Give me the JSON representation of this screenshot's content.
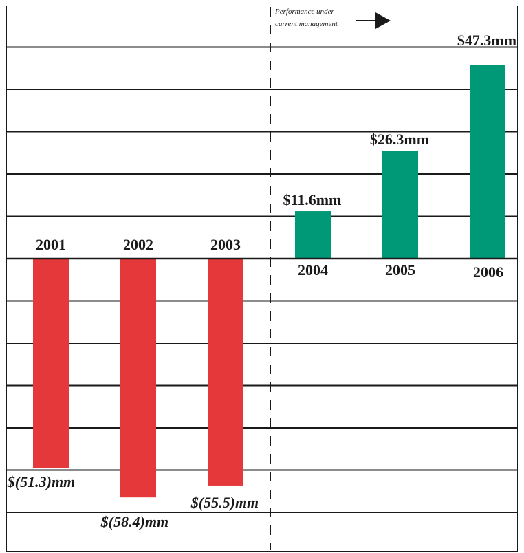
{
  "chart_data": {
    "type": "bar",
    "categories": [
      "2001",
      "2002",
      "2003",
      "2004",
      "2005",
      "2006"
    ],
    "values": [
      -51.3,
      -58.4,
      -55.5,
      11.6,
      26.3,
      47.3
    ],
    "value_labels": [
      "$(51.3)mm",
      "$(58.4)mm",
      "$(55.5)mm",
      "$11.6mm",
      "$26.3mm",
      "$47.3mm"
    ],
    "colors": {
      "negative": "#e5383b",
      "positive": "#009977",
      "gridline": "#1a1a1a"
    },
    "grid": true,
    "annotation": {
      "line1": "Performance under",
      "line2": "current management"
    }
  }
}
